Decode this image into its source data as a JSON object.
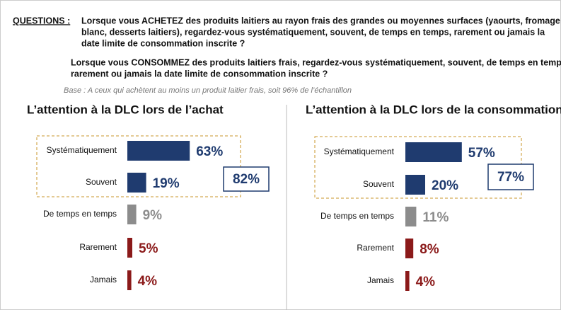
{
  "header": {
    "label": "QUESTIONS :",
    "question_1": [
      "Lorsque vous ACHETEZ des produits laitiers au rayon frais des grandes ou moyennes surfaces (yaourts, fromage",
      "blanc, desserts laitiers), regardez-vous systématiquement, souvent, de temps en temps, rarement ou jamais la",
      "date limite de consommation inscrite ?"
    ],
    "question_2": [
      "Lorsque vous CONSOMMEZ des produits laitiers frais, regardez-vous systématiquement, souvent, de temps en temps,",
      "rarement ou jamais la date limite de consommation inscrite ?"
    ],
    "base": "Base : A ceux qui achètent au moins un produit laitier frais, soit 96% de l’échantillon"
  },
  "chart_data": [
    {
      "type": "bar",
      "orientation": "horizontal",
      "title": "L’attention à la DLC lors de l’achat",
      "categories": [
        "Systématiquement",
        "Souvent",
        "De temps en temps",
        "Rarement",
        "Jamais"
      ],
      "values": [
        63,
        19,
        9,
        5,
        4
      ],
      "value_labels": [
        "63%",
        "19%",
        "9%",
        "5%",
        "4%"
      ],
      "colors": [
        "#1f3b6f",
        "#1f3b6f",
        "#8c8c8c",
        "#8b1a1a",
        "#8b1a1a"
      ],
      "annotation": "82%"
    },
    {
      "type": "bar",
      "orientation": "horizontal",
      "title": "L’attention à la DLC lors de la consommation",
      "categories": [
        "Systématiquement",
        "Souvent",
        "De temps en temps",
        "Rarement",
        "Jamais"
      ],
      "values": [
        57,
        20,
        11,
        8,
        4
      ],
      "value_labels": [
        "57%",
        "20%",
        "11%",
        "8%",
        "4%"
      ],
      "colors": [
        "#1f3b6f",
        "#1f3b6f",
        "#8c8c8c",
        "#8b1a1a",
        "#8b1a1a"
      ],
      "annotation": "77%"
    }
  ]
}
